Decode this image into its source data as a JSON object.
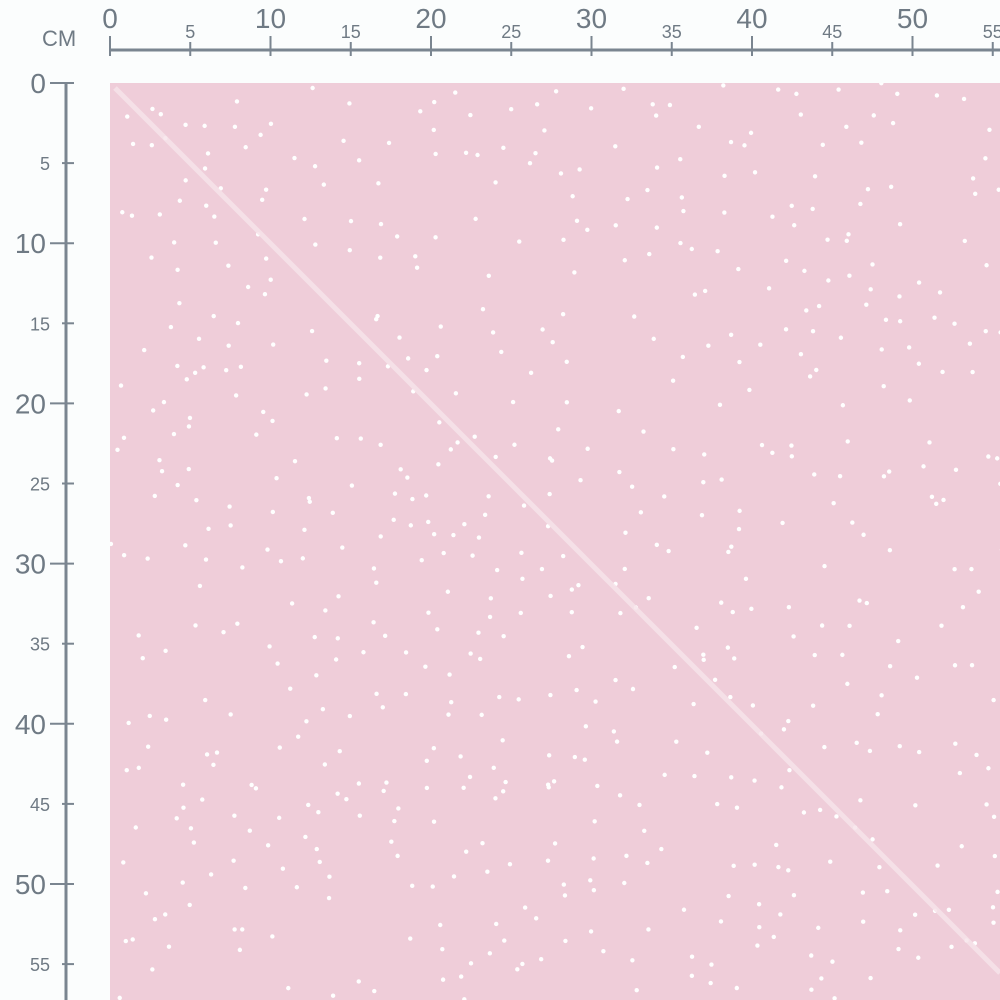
{
  "unit_label": "CM",
  "colors": {
    "fabric": "#efcdd9",
    "dots": "#ffffff",
    "ruler": "#7a8590"
  },
  "pattern": "white-dots-on-pink",
  "top_ruler": {
    "major_labels": [
      "0",
      "10",
      "20",
      "30",
      "40",
      "50"
    ],
    "minor_labels": [
      "5",
      "15",
      "25",
      "35",
      "45",
      "55"
    ]
  },
  "left_ruler": {
    "major_labels": [
      "0",
      "10",
      "20",
      "30",
      "40",
      "50"
    ],
    "minor_labels": [
      "5",
      "15",
      "25",
      "35",
      "45",
      "55"
    ]
  }
}
